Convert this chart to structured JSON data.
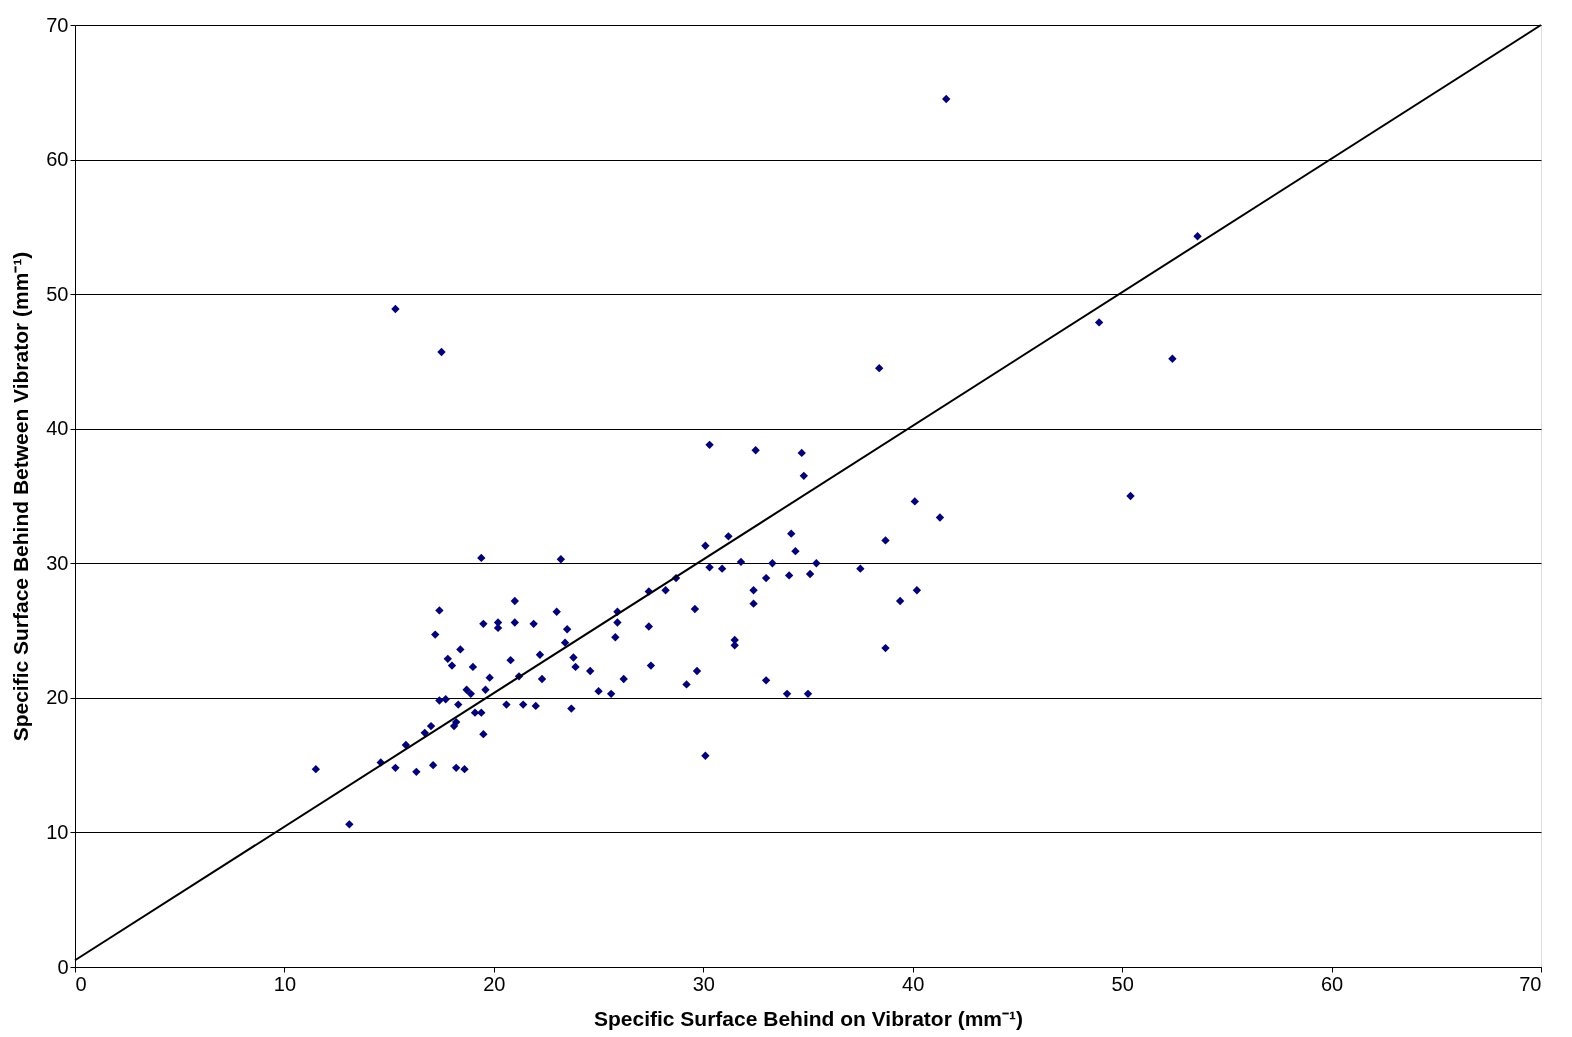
{
  "chart_data": {
    "type": "scatter",
    "xlabel": "Specific Surface Behind on Vibrator (mm⁻¹)",
    "ylabel": "Specific Surface Behind Between Vibrator (mm⁻¹)",
    "xlim": [
      0,
      70
    ],
    "ylim": [
      0,
      70
    ],
    "xticks": [
      0,
      10,
      20,
      30,
      40,
      50,
      60,
      70
    ],
    "yticks": [
      0,
      10,
      20,
      30,
      40,
      50,
      60,
      70
    ],
    "grid": "y",
    "marker": "diamond",
    "series": [
      {
        "color": "#000080",
        "x": [
          11.5,
          13.1,
          14.6,
          15.3,
          15.3,
          15.8,
          16.3,
          16.7,
          17.0,
          17.1,
          17.2,
          17.4,
          17.5,
          17.4,
          17.7,
          17.8,
          18.0,
          18.1,
          18.2,
          18.2,
          18.3,
          18.4,
          18.6,
          18.7,
          18.9,
          19.0,
          19.1,
          19.4,
          19.4,
          19.5,
          19.5,
          19.6,
          19.8,
          20.2,
          20.2,
          20.6,
          20.8,
          21.0,
          21.0,
          21.2,
          21.4,
          21.9,
          22.0,
          22.2,
          22.3,
          23.0,
          23.2,
          23.4,
          23.5,
          23.7,
          23.8,
          23.9,
          24.6,
          25.0,
          25.6,
          25.8,
          25.9,
          25.9,
          26.2,
          27.4,
          27.4,
          27.5,
          28.2,
          28.7,
          29.2,
          29.6,
          29.7,
          30.1,
          30.1,
          30.3,
          30.3,
          30.9,
          31.2,
          31.5,
          31.5,
          31.8,
          32.4,
          32.4,
          32.5,
          33.0,
          33.0,
          33.3,
          34.0,
          34.1,
          34.2,
          34.4,
          34.7,
          34.8,
          35.0,
          35.1,
          35.4,
          37.5,
          38.4,
          38.7,
          38.7,
          39.4,
          40.1,
          40.2,
          41.3,
          41.6,
          48.9,
          50.4,
          52.4,
          53.6
        ],
        "values": [
          14.7,
          10.6,
          15.2,
          14.8,
          48.9,
          16.5,
          14.5,
          17.4,
          17.9,
          15.0,
          24.7,
          26.5,
          45.7,
          19.8,
          19.9,
          22.9,
          22.4,
          17.9,
          14.8,
          18.2,
          19.5,
          23.6,
          14.7,
          20.6,
          20.3,
          22.3,
          18.9,
          18.9,
          30.4,
          25.5,
          17.3,
          20.6,
          21.5,
          25.6,
          25.2,
          19.5,
          22.8,
          27.2,
          25.6,
          21.6,
          19.5,
          25.5,
          19.4,
          23.2,
          21.4,
          26.4,
          30.3,
          24.1,
          25.1,
          19.2,
          23.0,
          22.3,
          22.0,
          20.5,
          20.3,
          24.5,
          25.6,
          26.4,
          21.4,
          27.9,
          25.3,
          22.4,
          28.0,
          28.9,
          21.0,
          26.6,
          22.0,
          31.3,
          15.7,
          38.8,
          29.7,
          29.6,
          32.0,
          24.3,
          23.9,
          30.1,
          28.0,
          27.0,
          38.4,
          21.3,
          28.9,
          30.0,
          20.3,
          29.1,
          32.2,
          30.9,
          38.2,
          36.5,
          20.3,
          29.2,
          30.0,
          29.6,
          44.5,
          31.7,
          23.7,
          27.2,
          34.6,
          28.0,
          33.4,
          64.5,
          47.9,
          35.0,
          45.2,
          54.3
        ]
      },
      {
        "type": "line",
        "color": "#000000",
        "marker": "none",
        "line_style": "solid",
        "x": [
          0,
          70
        ],
        "values": [
          0.5,
          70
        ]
      }
    ]
  }
}
